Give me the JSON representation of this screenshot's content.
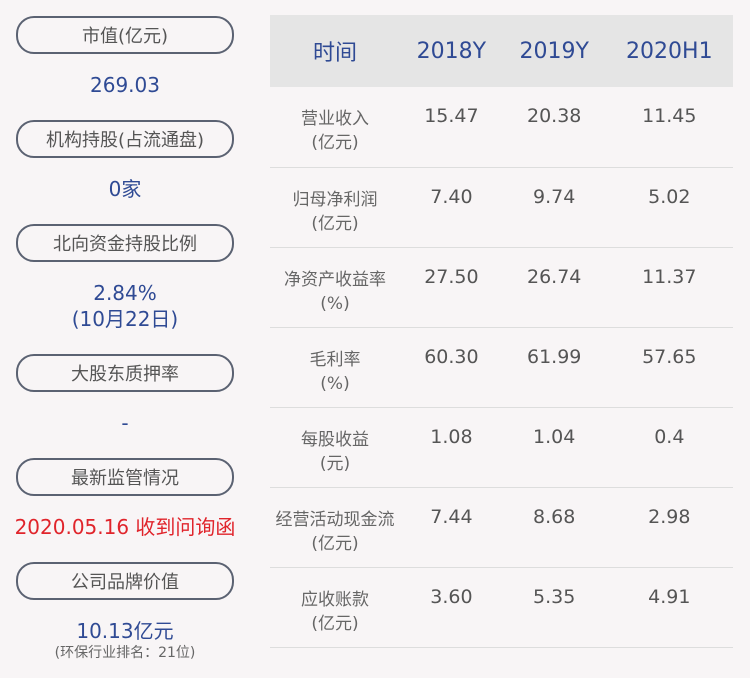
{
  "left": [
    {
      "label": "市值(亿元)",
      "value": "269.03"
    },
    {
      "label": "机构持股(占流通盘)",
      "value": "0家"
    },
    {
      "label": "北向资金持股比例",
      "value": "2.84%",
      "value2": "(10月22日)"
    },
    {
      "label": "大股东质押率",
      "value": "-"
    },
    {
      "label": "最新监管情况",
      "value": "2020.05.16 收到问询函"
    },
    {
      "label": "公司品牌价值",
      "value": "10.13亿元",
      "note": "(环保行业排名：21位)"
    }
  ],
  "table": {
    "headers": [
      "时间",
      "2018Y",
      "2019Y",
      "2020H1"
    ],
    "rows": [
      {
        "l1": "营业收入",
        "l2": "(亿元)",
        "v": [
          "15.47",
          "20.38",
          "11.45"
        ]
      },
      {
        "l1": "归母净利润",
        "l2": "(亿元)",
        "v": [
          "7.40",
          "9.74",
          "5.02"
        ]
      },
      {
        "l1": "净资产收益率",
        "l2": "(%)",
        "v": [
          "27.50",
          "26.74",
          "11.37"
        ]
      },
      {
        "l1": "毛利率",
        "l2": "(%)",
        "v": [
          "60.30",
          "61.99",
          "57.65"
        ]
      },
      {
        "l1": "每股收益",
        "l2": "(元)",
        "v": [
          "1.08",
          "1.04",
          "0.4"
        ]
      },
      {
        "l1": "经营活动现金流",
        "l2": "(亿元)",
        "v": [
          "7.44",
          "8.68",
          "2.98"
        ]
      },
      {
        "l1": "应收账款",
        "l2": "(亿元)",
        "v": [
          "3.60",
          "5.35",
          "4.91"
        ]
      }
    ]
  },
  "colors": {
    "blue": "#2f4a94",
    "red": "#e0242b"
  }
}
